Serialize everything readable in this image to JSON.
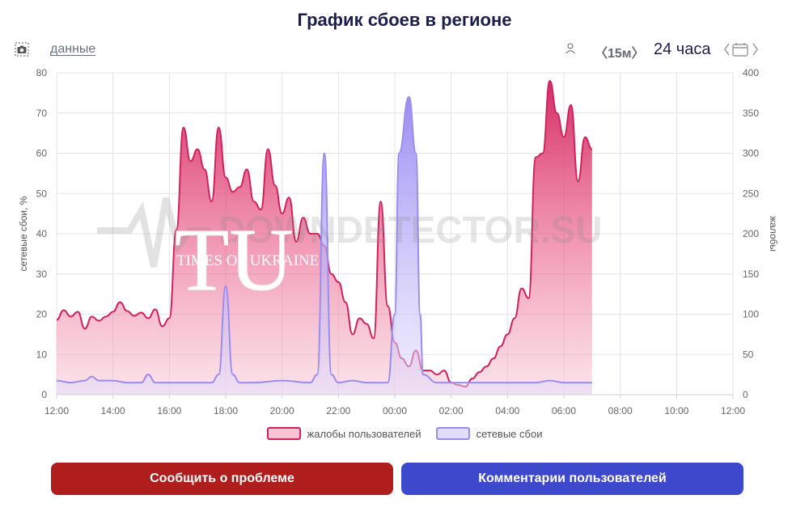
{
  "title": "График сбоев в регионе",
  "toolbar": {
    "data_link": "данные",
    "interval": "〈15м〉",
    "period": "24 часа"
  },
  "watermark": {
    "brand": "DOWNDETECTOR.SU",
    "logo_letters": "TU",
    "logo_text": "TIMES OF UKRAINE"
  },
  "buttons": {
    "report": "Сообщить о проблеме",
    "comments": "Комментарии пользователей"
  },
  "colors": {
    "complaints": "#d2215c",
    "outages": "#9b8cf0",
    "report_button": "#b01d1d",
    "comments_button": "#3e48cc"
  },
  "chart_data": {
    "type": "area",
    "x_ticks": [
      "12:00",
      "14:00",
      "16:00",
      "18:00",
      "20:00",
      "22:00",
      "00:00",
      "02:00",
      "04:00",
      "06:00",
      "08:00",
      "10:00",
      "12:00"
    ],
    "x_range_hours": [
      0,
      24
    ],
    "left_axis": {
      "label": "сетевые сбои, %",
      "ticks": [
        0,
        10,
        20,
        30,
        40,
        50,
        60,
        70,
        80
      ],
      "range": [
        0,
        80
      ]
    },
    "right_axis": {
      "label": "жалобы",
      "ticks": [
        0,
        50,
        100,
        150,
        200,
        250,
        300,
        350,
        400
      ],
      "range": [
        0,
        400
      ]
    },
    "legend": [
      "жалобы пользователей",
      "сетевые сбои"
    ],
    "series": [
      {
        "name": "жалобы пользователей",
        "axis": "right",
        "points": [
          [
            0,
            93
          ],
          [
            0.25,
            105
          ],
          [
            0.5,
            97
          ],
          [
            0.75,
            103
          ],
          [
            1,
            82
          ],
          [
            1.25,
            97
          ],
          [
            1.5,
            92
          ],
          [
            1.75,
            97
          ],
          [
            2,
            103
          ],
          [
            2.25,
            115
          ],
          [
            2.5,
            104
          ],
          [
            2.75,
            98
          ],
          [
            3,
            102
          ],
          [
            3.25,
            95
          ],
          [
            3.5,
            106
          ],
          [
            3.75,
            85
          ],
          [
            4,
            95
          ],
          [
            4.25,
            205
          ],
          [
            4.5,
            332
          ],
          [
            4.75,
            290
          ],
          [
            5,
            305
          ],
          [
            5.25,
            280
          ],
          [
            5.5,
            240
          ],
          [
            5.75,
            332
          ],
          [
            6,
            270
          ],
          [
            6.25,
            252
          ],
          [
            6.5,
            258
          ],
          [
            6.75,
            280
          ],
          [
            7,
            240
          ],
          [
            7.25,
            230
          ],
          [
            7.5,
            305
          ],
          [
            7.75,
            260
          ],
          [
            8,
            225
          ],
          [
            8.25,
            245
          ],
          [
            8.5,
            190
          ],
          [
            8.75,
            220
          ],
          [
            9,
            200
          ],
          [
            9.25,
            200
          ],
          [
            9.5,
            185
          ],
          [
            9.75,
            150
          ],
          [
            10,
            140
          ],
          [
            10.25,
            115
          ],
          [
            10.5,
            75
          ],
          [
            10.75,
            95
          ],
          [
            11,
            88
          ],
          [
            11.25,
            70
          ],
          [
            11.5,
            240
          ],
          [
            11.75,
            110
          ],
          [
            12,
            65
          ],
          [
            12.25,
            45
          ],
          [
            12.5,
            35
          ],
          [
            12.75,
            55
          ],
          [
            13,
            30
          ],
          [
            13.25,
            30
          ],
          [
            13.5,
            25
          ],
          [
            13.75,
            30
          ],
          [
            14,
            15
          ],
          [
            14.25,
            12
          ],
          [
            14.5,
            10
          ],
          [
            14.75,
            20
          ],
          [
            15,
            28
          ],
          [
            15.25,
            35
          ],
          [
            15.5,
            45
          ],
          [
            15.75,
            60
          ],
          [
            16,
            75
          ],
          [
            16.25,
            95
          ],
          [
            16.5,
            132
          ],
          [
            16.75,
            120
          ],
          [
            17,
            295
          ],
          [
            17.25,
            300
          ],
          [
            17.5,
            390
          ],
          [
            17.75,
            350
          ],
          [
            18,
            320
          ],
          [
            18.25,
            360
          ],
          [
            18.5,
            265
          ],
          [
            18.75,
            320
          ],
          [
            19,
            305
          ]
        ]
      },
      {
        "name": "сетевые сбои",
        "axis": "left",
        "points": [
          [
            0,
            3.5
          ],
          [
            0.5,
            3
          ],
          [
            1,
            3.5
          ],
          [
            1.25,
            4.5
          ],
          [
            1.5,
            3.5
          ],
          [
            2,
            3.5
          ],
          [
            2.5,
            3
          ],
          [
            3,
            3
          ],
          [
            3.25,
            5
          ],
          [
            3.5,
            3
          ],
          [
            4,
            3
          ],
          [
            5,
            3
          ],
          [
            5.5,
            3
          ],
          [
            5.75,
            5
          ],
          [
            6,
            27
          ],
          [
            6.25,
            5
          ],
          [
            6.5,
            3
          ],
          [
            7,
            3
          ],
          [
            8,
            3.5
          ],
          [
            9,
            3
          ],
          [
            9.25,
            5
          ],
          [
            9.5,
            60
          ],
          [
            9.75,
            5
          ],
          [
            10,
            3
          ],
          [
            10.5,
            3.5
          ],
          [
            11,
            3
          ],
          [
            11.5,
            3
          ],
          [
            11.75,
            3
          ],
          [
            12,
            20
          ],
          [
            12.15,
            60
          ],
          [
            12.5,
            74
          ],
          [
            12.75,
            60
          ],
          [
            12.9,
            20
          ],
          [
            13,
            5
          ],
          [
            13.5,
            3
          ],
          [
            14,
            3
          ],
          [
            15,
            3
          ],
          [
            16,
            3
          ],
          [
            17,
            3
          ],
          [
            17.5,
            3.5
          ],
          [
            18,
            3
          ],
          [
            19,
            3
          ]
        ]
      }
    ]
  }
}
